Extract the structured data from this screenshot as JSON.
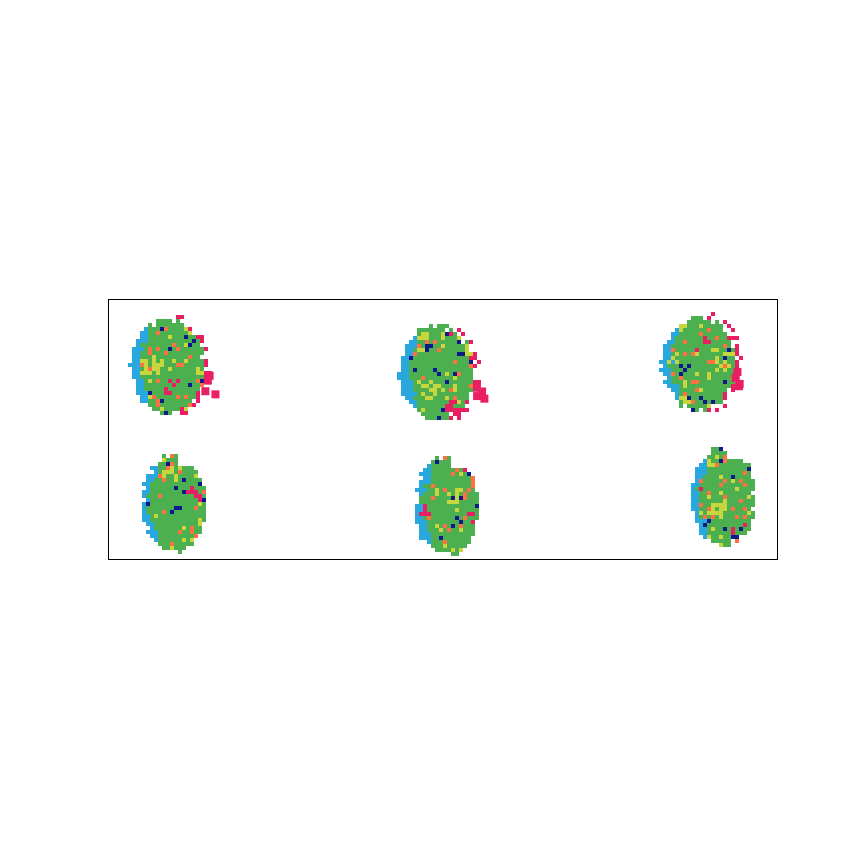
{
  "figure": {
    "palette": {
      "background": "#ffffff",
      "border": "#000000",
      "green": "#4caf50",
      "lime": "#c6d63c",
      "red": "#e91e63",
      "orange": "#ff7043",
      "blue": "#29a8e0",
      "navy": "#0d1a8c"
    },
    "rows": 2,
    "columns": 3,
    "panels": [
      {
        "row": 1,
        "col": 1,
        "shape": "wide",
        "seed": 11
      },
      {
        "row": 1,
        "col": 2,
        "shape": "wide",
        "seed": 23
      },
      {
        "row": 1,
        "col": 3,
        "shape": "wide",
        "seed": 37
      },
      {
        "row": 2,
        "col": 1,
        "shape": "round",
        "seed": 41
      },
      {
        "row": 2,
        "col": 2,
        "shape": "round",
        "seed": 53
      },
      {
        "row": 2,
        "col": 3,
        "shape": "round",
        "seed": 67
      }
    ]
  }
}
